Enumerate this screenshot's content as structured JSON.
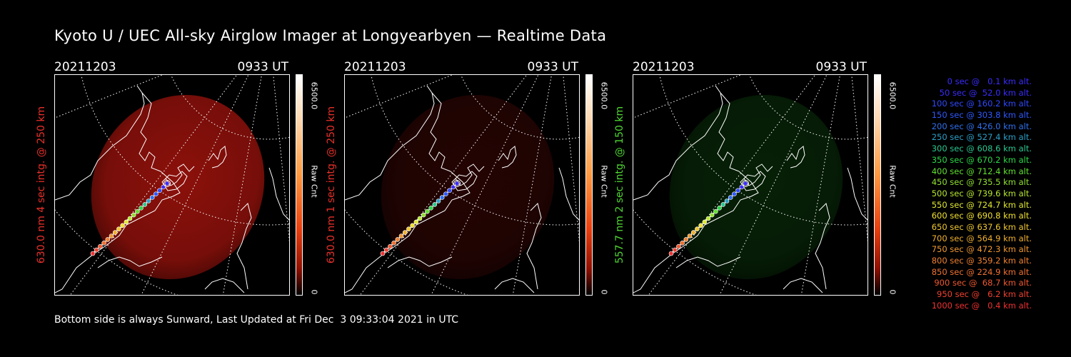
{
  "title": "Kyoto U / UEC All-sky Airglow Imager at Longyearbyen — Realtime Data",
  "panels": [
    {
      "date": "20211203",
      "time": "0933 UT",
      "label": "630.0 nm 4 sec intg. @ 250 km",
      "label_color": "#e8302a",
      "cbar_max": "6500.0",
      "cbar_unit": "Raw Cnt",
      "cbar_min": "0",
      "channel": "red",
      "intensity": 0.55
    },
    {
      "date": "20211203",
      "time": "0933 UT",
      "label": "630.0 nm 1 sec intg. @ 250 km",
      "label_color": "#e8302a",
      "cbar_max": "6500.0",
      "cbar_unit": "Raw Cnt",
      "cbar_min": "0",
      "channel": "red",
      "intensity": 0.14
    },
    {
      "date": "20211203",
      "time": "0933 UT",
      "label": "557.7 nm 2 sec intg. @ 150 km",
      "label_color": "#4fd832",
      "cbar_max": "6500.0",
      "cbar_unit": "Raw Cnt",
      "cbar_min": "0",
      "channel": "green",
      "intensity": 0.16
    }
  ],
  "legend": [
    {
      "text": "0 sec @   0.1 km alt.",
      "color": "#3a2cff"
    },
    {
      "text": "50 sec @  52.0 km alt.",
      "color": "#3a2cff"
    },
    {
      "text": "100 sec @ 160.2 km alt.",
      "color": "#2f48ff"
    },
    {
      "text": "150 sec @ 303.8 km alt.",
      "color": "#2f58ff"
    },
    {
      "text": "200 sec @ 426.0 km alt.",
      "color": "#2f70ee"
    },
    {
      "text": "250 sec @ 527.4 km alt.",
      "color": "#2aa0c8"
    },
    {
      "text": "300 sec @ 608.6 km alt.",
      "color": "#2ac890"
    },
    {
      "text": "350 sec @ 670.2 km alt.",
      "color": "#2ad848"
    },
    {
      "text": "400 sec @ 712.4 km alt.",
      "color": "#60e030"
    },
    {
      "text": "450 sec @ 735.5 km alt.",
      "color": "#90e030"
    },
    {
      "text": "500 sec @ 739.6 km alt.",
      "color": "#b8e830"
    },
    {
      "text": "550 sec @ 724.7 km alt.",
      "color": "#e0e830"
    },
    {
      "text": "600 sec @ 690.8 km alt.",
      "color": "#f0e030"
    },
    {
      "text": "650 sec @ 637.6 km alt.",
      "color": "#f0c830"
    },
    {
      "text": "700 sec @ 564.9 km alt.",
      "color": "#f0b030"
    },
    {
      "text": "750 sec @ 472.3 km alt.",
      "color": "#f09830"
    },
    {
      "text": "800 sec @ 359.2 km alt.",
      "color": "#f08030"
    },
    {
      "text": "850 sec @ 224.9 km alt.",
      "color": "#f07030"
    },
    {
      "text": "900 sec @  68.7 km alt.",
      "color": "#f05830"
    },
    {
      "text": "950 sec @   6.2 km alt.",
      "color": "#f04030"
    },
    {
      "text": "1000 sec @   0.4 km alt.",
      "color": "#f03030"
    }
  ],
  "footer": "Bottom side is always Sunward, Last Updated at Fri Dec  3 09:33:04 2021 in UTC"
}
